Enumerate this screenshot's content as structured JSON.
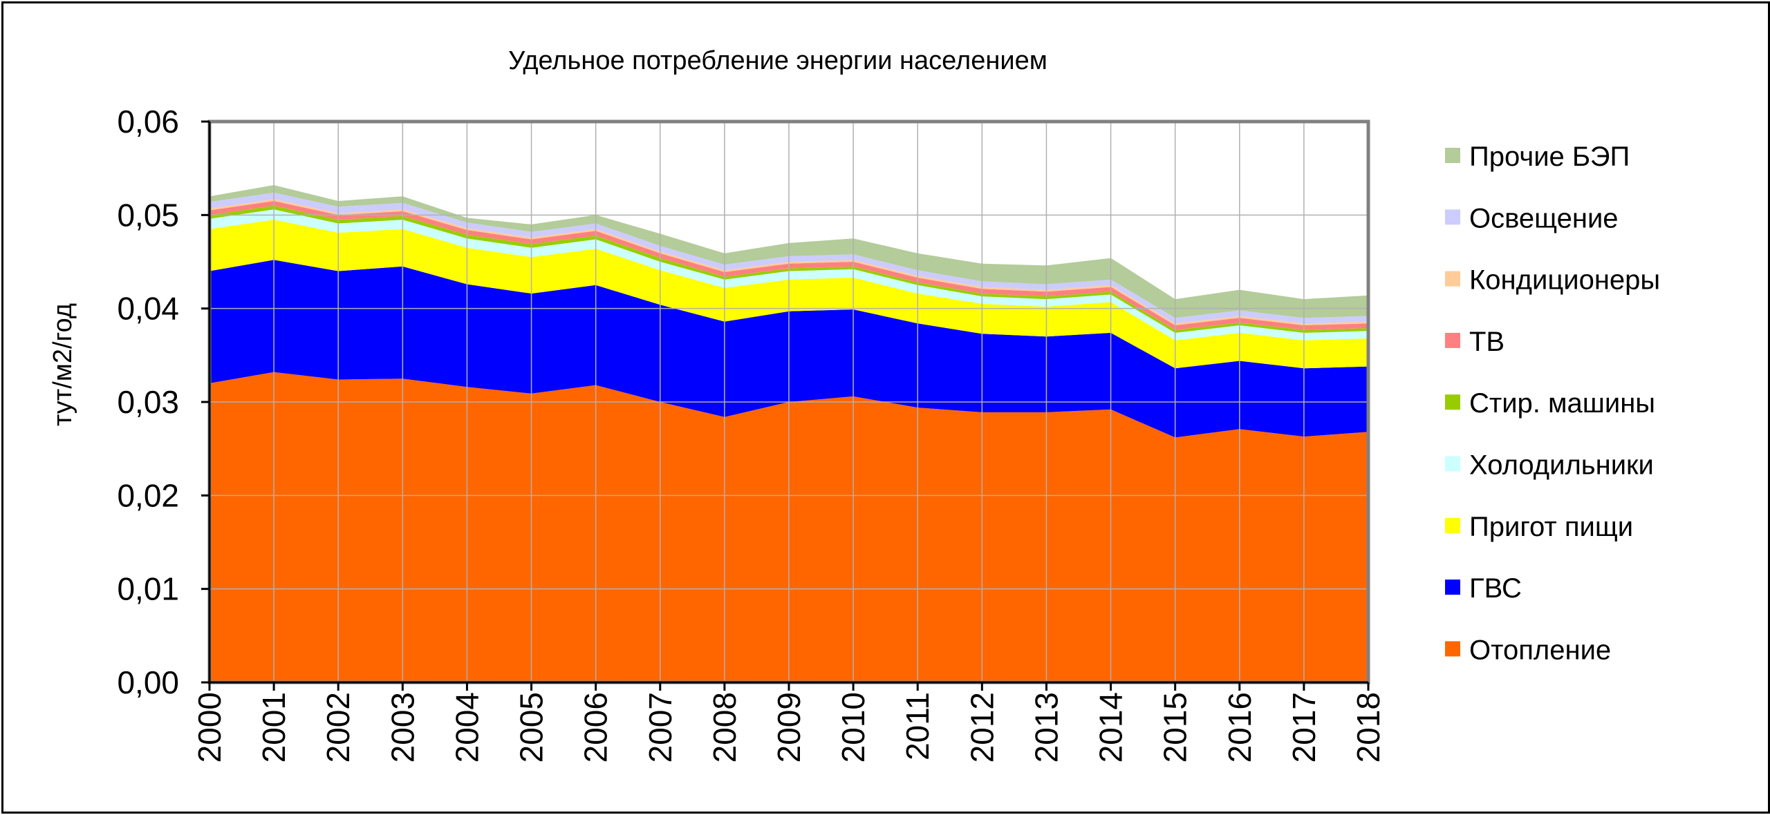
{
  "chart_data": {
    "type": "area",
    "stacked": true,
    "title": "Удельное потребление энергии населением",
    "xlabel": "",
    "ylabel": "тут/м2/год",
    "ylim": [
      0,
      0.06
    ],
    "y_ticks": [
      "0,00",
      "0,01",
      "0,02",
      "0,03",
      "0,04",
      "0,05",
      "0,06"
    ],
    "x": [
      "2000",
      "2001",
      "2002",
      "2003",
      "2004",
      "2005",
      "2006",
      "2007",
      "2008",
      "2009",
      "2010",
      "2011",
      "2012",
      "2013",
      "2014",
      "2015",
      "2016",
      "2017",
      "2018"
    ],
    "grid": true,
    "legend_position": "right",
    "series": [
      {
        "name": "Отопление",
        "color": "#ff6600",
        "values": [
          0.032,
          0.0332,
          0.0324,
          0.0325,
          0.0316,
          0.0309,
          0.0318,
          0.03,
          0.0284,
          0.03,
          0.0306,
          0.0294,
          0.0289,
          0.0289,
          0.0292,
          0.0262,
          0.0271,
          0.0263,
          0.0268
        ]
      },
      {
        "name": "ГВС",
        "color": "#0000ff",
        "values": [
          0.012,
          0.012,
          0.0116,
          0.012,
          0.011,
          0.0107,
          0.0107,
          0.0104,
          0.0102,
          0.0097,
          0.0093,
          0.009,
          0.0084,
          0.0081,
          0.0082,
          0.0074,
          0.0073,
          0.0073,
          0.007
        ]
      },
      {
        "name": "Пригот пищи",
        "color": "#ffff00",
        "values": [
          0.0045,
          0.0043,
          0.0041,
          0.004,
          0.0039,
          0.0039,
          0.0039,
          0.0037,
          0.0036,
          0.0034,
          0.0034,
          0.0032,
          0.0032,
          0.0032,
          0.0033,
          0.003,
          0.003,
          0.003,
          0.003
        ]
      },
      {
        "name": "Холодильники",
        "color": "#ccffff",
        "values": [
          0.0011,
          0.0011,
          0.001,
          0.001,
          0.001,
          0.001,
          0.001,
          0.0009,
          0.0009,
          0.0009,
          0.0009,
          0.0009,
          0.0008,
          0.0008,
          0.0008,
          0.0008,
          0.0008,
          0.0008,
          0.0008
        ]
      },
      {
        "name": "Стир. машины",
        "color": "#99cc00",
        "values": [
          0.0004,
          0.0004,
          0.0004,
          0.0004,
          0.0004,
          0.0004,
          0.0004,
          0.0004,
          0.0003,
          0.0003,
          0.0003,
          0.0003,
          0.0003,
          0.0003,
          0.0003,
          0.0003,
          0.0003,
          0.0003,
          0.0003
        ]
      },
      {
        "name": "ТВ",
        "color": "#ff8080",
        "values": [
          0.0005,
          0.0005,
          0.0005,
          0.0005,
          0.0005,
          0.0005,
          0.0005,
          0.0005,
          0.0005,
          0.0005,
          0.0005,
          0.0005,
          0.0005,
          0.0005,
          0.0005,
          0.0005,
          0.0005,
          0.0005,
          0.0005
        ]
      },
      {
        "name": "Кондиционеры",
        "color": "#ffcc99",
        "values": [
          0.0002,
          0.0002,
          0.0002,
          0.0002,
          0.0002,
          0.0002,
          0.0002,
          0.0002,
          0.0002,
          0.0002,
          0.0002,
          0.0002,
          0.0002,
          0.0002,
          0.0002,
          0.0002,
          0.0002,
          0.0002,
          0.0002
        ]
      },
      {
        "name": "Освещение",
        "color": "#ccccff",
        "values": [
          0.0007,
          0.0007,
          0.0007,
          0.0007,
          0.0006,
          0.0006,
          0.0006,
          0.0006,
          0.0006,
          0.0006,
          0.0006,
          0.0006,
          0.0006,
          0.0006,
          0.0006,
          0.0006,
          0.0006,
          0.0006,
          0.0006
        ]
      },
      {
        "name": "Прочие БЭП",
        "color": "#b3cc99",
        "values": [
          0.0006,
          0.0008,
          0.0006,
          0.0007,
          0.0005,
          0.0008,
          0.0009,
          0.0013,
          0.0012,
          0.0014,
          0.0017,
          0.0018,
          0.0019,
          0.002,
          0.0023,
          0.002,
          0.0022,
          0.002,
          0.0022
        ]
      }
    ]
  }
}
